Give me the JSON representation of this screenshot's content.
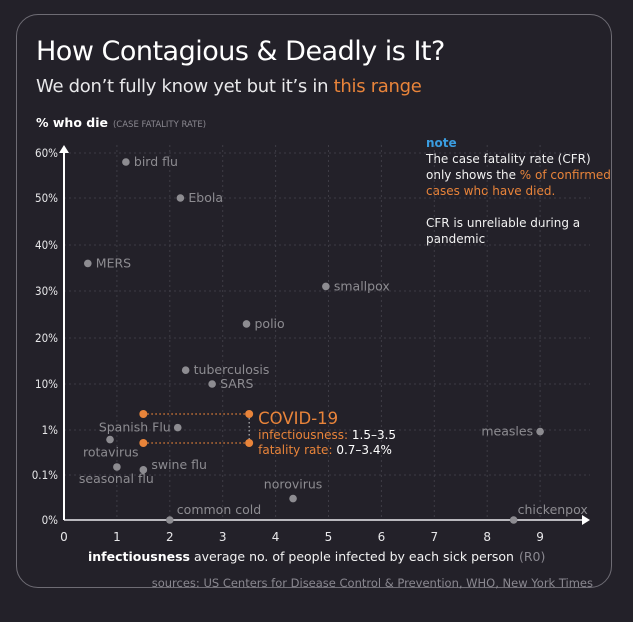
{
  "header": {
    "title": "How Contagious & Deadly is It?",
    "subtitle_prefix": "We don’t fully know yet but it’s in ",
    "subtitle_highlight": "this range"
  },
  "note": {
    "heading": "note",
    "line1_prefix": "The case fatality rate (CFR) only shows the ",
    "line1_highlight": "% of confirmed cases who have died.",
    "line2": "CFR is unreliable during a pandemic"
  },
  "footer": {
    "sources": "sources: US Centers for Disease Control & Prevention, WHO, New York Times"
  },
  "colors": {
    "background": "#232129",
    "accent": "#e9843a",
    "note_blue": "#3a9de0",
    "point": "#8d8c91"
  },
  "chart_data": {
    "type": "scatter",
    "title": "How Contagious & Deadly is It?",
    "xlabel_bold": "infectiousness",
    "xlabel": "average no. of people infected by each sick person",
    "xlabel_suffix": "(R0)",
    "ylabel": "% who die",
    "ylabel_suffix": "(CASE FATALITY RATE)",
    "xlim": [
      0,
      9.9
    ],
    "x_ticks": [
      "0",
      "1",
      "2",
      "3",
      "4",
      "5",
      "6",
      "7",
      "8",
      "9"
    ],
    "y_ticks": [
      "0%",
      "0.1%",
      "1%",
      "10%",
      "20%",
      "30%",
      "40%",
      "50%",
      "60%"
    ],
    "y_scale": "categorical-log-linear",
    "grid": true,
    "points": [
      {
        "name": "bird flu",
        "x": 1.17,
        "y": 58,
        "label_side": "right"
      },
      {
        "name": "Ebola",
        "x": 2.2,
        "y": 50,
        "label_side": "right"
      },
      {
        "name": "MERS",
        "x": 0.45,
        "y": 36,
        "label_side": "right"
      },
      {
        "name": "smallpox",
        "x": 4.95,
        "y": 31,
        "label_side": "right"
      },
      {
        "name": "polio",
        "x": 3.45,
        "y": 23,
        "label_side": "right"
      },
      {
        "name": "tuberculosis",
        "x": 2.3,
        "y": 13,
        "label_side": "right"
      },
      {
        "name": "SARS",
        "x": 2.8,
        "y": 10,
        "label_side": "right"
      },
      {
        "name": "Spanish Flu",
        "x": 2.15,
        "y": 1.1,
        "label_side": "left"
      },
      {
        "name": "rotavirus",
        "x": 0.87,
        "y": 0.6,
        "label_side": "below"
      },
      {
        "name": "seasonal flu",
        "x": 1.0,
        "y": 0.15,
        "label_side": "below"
      },
      {
        "name": "swine flu",
        "x": 1.5,
        "y": 0.13,
        "label_side": "above-right"
      },
      {
        "name": "norovirus",
        "x": 4.33,
        "y": 0.03,
        "label_side": "above"
      },
      {
        "name": "common cold",
        "x": 2.0,
        "y": 0,
        "label_side": "above-right"
      },
      {
        "name": "measles",
        "x": 9.0,
        "y": 0.9,
        "label_side": "left"
      },
      {
        "name": "chickenpox",
        "x": 8.5,
        "y": 0,
        "label_side": "above-right"
      }
    ],
    "highlight": {
      "name": "COVID-19",
      "x_range": [
        1.5,
        3.5
      ],
      "y_range": [
        0.7,
        3.4
      ],
      "infectiousness_label": "infectiousness:",
      "infectiousness_value": "1.5–3.5",
      "fatality_label": "fatality rate:",
      "fatality_value": "0.7–3.4%"
    }
  }
}
